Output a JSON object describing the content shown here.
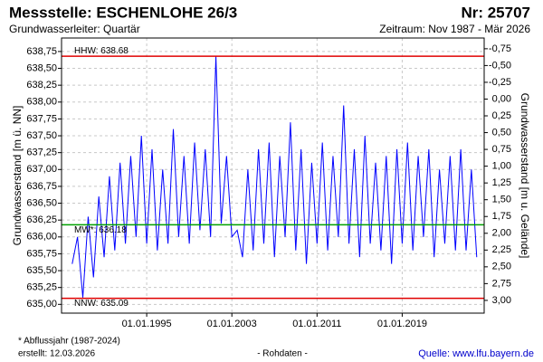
{
  "chart_data": {
    "type": "line",
    "title": "Messstelle: ESCHENLOHE 26/3",
    "number": "Nr: 25707",
    "subtitle": "Grundwasserleiter: Quartär",
    "period": "Zeitraum: Nov 1987 - Mär 2026",
    "y_label": "Grundwasserstand [m ü. NN]",
    "y2_label": "Grundwasserstand [m u. Gelände]",
    "footnote": "* Abflussjahr (1987-2024)",
    "created": "erstellt:  12.03.2026",
    "raw_note": "- Rohdaten -",
    "source": "Quelle: www.lfu.bayern.de",
    "grid": true,
    "xlim": [
      1987.0,
      2026.7
    ],
    "xticks": [
      {
        "value": 1995,
        "label": "01.01.1995"
      },
      {
        "value": 2003,
        "label": "01.01.2003"
      },
      {
        "value": 2011,
        "label": "01.01.2011"
      },
      {
        "value": 2019,
        "label": "01.01.2019"
      }
    ],
    "ylim": [
      634.87,
      638.95
    ],
    "yticks": [
      {
        "value": 635.0,
        "label": "635,00"
      },
      {
        "value": 635.25,
        "label": "635,25"
      },
      {
        "value": 635.5,
        "label": "635,50"
      },
      {
        "value": 635.75,
        "label": "635,75"
      },
      {
        "value": 636.0,
        "label": "636,00"
      },
      {
        "value": 636.25,
        "label": "636,25"
      },
      {
        "value": 636.5,
        "label": "636,50"
      },
      {
        "value": 636.75,
        "label": "636,75"
      },
      {
        "value": 637.0,
        "label": "637,00"
      },
      {
        "value": 637.25,
        "label": "637,25"
      },
      {
        "value": 637.5,
        "label": "637,50"
      },
      {
        "value": 637.75,
        "label": "637,75"
      },
      {
        "value": 638.0,
        "label": "638,00"
      },
      {
        "value": 638.25,
        "label": "638,25"
      },
      {
        "value": 638.5,
        "label": "638,50"
      },
      {
        "value": 638.75,
        "label": "638,75"
      }
    ],
    "y2lim": [
      3.19,
      -0.91
    ],
    "y2ticks": [
      {
        "value": -0.75,
        "label": "-0,75"
      },
      {
        "value": -0.5,
        "label": "-0,50"
      },
      {
        "value": -0.25,
        "label": "-0,25"
      },
      {
        "value": 0,
        "label": "0,00"
      },
      {
        "value": 0.25,
        "label": "0,25"
      },
      {
        "value": 0.5,
        "label": "0,50"
      },
      {
        "value": 0.75,
        "label": "0,75"
      },
      {
        "value": 1,
        "label": "1,00"
      },
      {
        "value": 1.25,
        "label": "1,25"
      },
      {
        "value": 1.5,
        "label": "1,50"
      },
      {
        "value": 1.75,
        "label": "1,75"
      },
      {
        "value": 2,
        "label": "2,00"
      },
      {
        "value": 2.25,
        "label": "2,25"
      },
      {
        "value": 2.5,
        "label": "2,50"
      },
      {
        "value": 2.75,
        "label": "2,75"
      },
      {
        "value": 3,
        "label": "3,00"
      }
    ],
    "reference_lines": [
      {
        "label": "HHW: 638.68",
        "value": 638.68,
        "color": "#e00000"
      },
      {
        "label": "MW*: 636.18",
        "value": 636.18,
        "color": "#00a000"
      },
      {
        "label": "NNW: 635.09",
        "value": 635.09,
        "color": "#e00000"
      }
    ],
    "x": [
      1988.0,
      1988.5,
      1989.0,
      1989.5,
      1990.0,
      1990.5,
      1991.0,
      1991.5,
      1992.0,
      1992.5,
      1993.0,
      1993.5,
      1994.0,
      1994.5,
      1995.0,
      1995.5,
      1996.0,
      1996.5,
      1997.0,
      1997.5,
      1998.0,
      1998.5,
      1999.0,
      1999.5,
      2000.0,
      2000.5,
      2001.0,
      2001.5,
      2002.0,
      2002.5,
      2003.0,
      2003.5,
      2004.0,
      2004.5,
      2005.0,
      2005.5,
      2006.0,
      2006.5,
      2007.0,
      2007.5,
      2008.0,
      2008.5,
      2009.0,
      2009.5,
      2010.0,
      2010.5,
      2011.0,
      2011.5,
      2012.0,
      2012.5,
      2013.0,
      2013.5,
      2014.0,
      2014.5,
      2015.0,
      2015.5,
      2016.0,
      2016.5,
      2017.0,
      2017.5,
      2018.0,
      2018.5,
      2019.0,
      2019.5,
      2020.0,
      2020.5,
      2021.0,
      2021.5,
      2022.0,
      2022.5,
      2023.0,
      2023.5,
      2024.0,
      2024.5,
      2025.0,
      2025.5,
      2026.0
    ],
    "series": [
      {
        "name": "Grundwasserstand",
        "color": "#0000ff",
        "values": [
          635.6,
          636.0,
          635.1,
          636.3,
          635.4,
          636.6,
          635.7,
          636.9,
          635.8,
          637.1,
          635.9,
          637.2,
          636.0,
          637.5,
          635.9,
          637.3,
          635.8,
          637.0,
          635.9,
          637.6,
          636.0,
          637.2,
          635.9,
          637.4,
          636.1,
          637.3,
          636.0,
          638.68,
          636.2,
          637.2,
          636.0,
          636.1,
          635.7,
          637.0,
          635.8,
          637.3,
          635.9,
          637.4,
          635.7,
          637.2,
          636.0,
          637.7,
          635.8,
          637.3,
          635.6,
          637.1,
          635.9,
          637.4,
          635.8,
          637.2,
          636.0,
          637.95,
          635.9,
          637.3,
          635.7,
          637.5,
          635.9,
          637.1,
          635.8,
          637.2,
          635.6,
          637.3,
          635.9,
          637.4,
          635.8,
          637.2,
          636.0,
          637.3,
          635.7,
          637.0,
          635.9,
          637.2,
          635.8,
          637.3,
          635.8,
          637.0,
          635.7
        ]
      }
    ]
  }
}
